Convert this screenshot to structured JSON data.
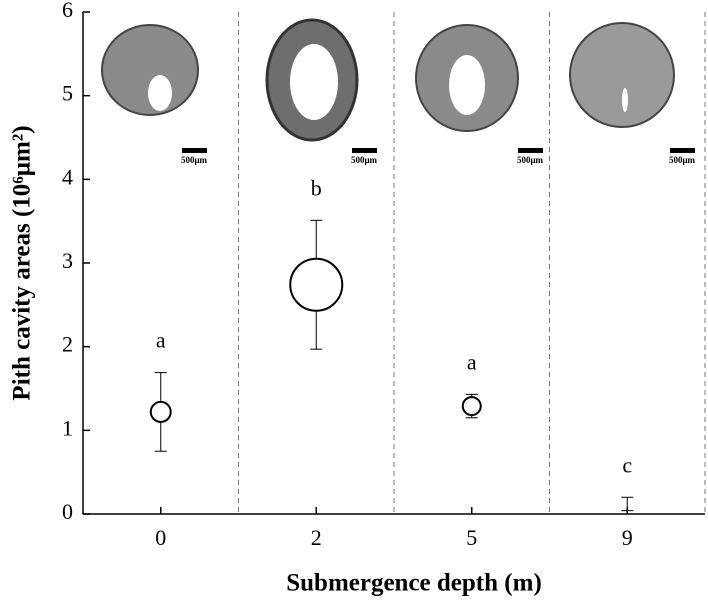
{
  "chart_data": {
    "type": "scatter",
    "xlabel": "Submergence depth (m)",
    "ylabel": "Pith cavity areas (10⁶μm²)",
    "categories": [
      "0",
      "2",
      "5",
      "9"
    ],
    "values": [
      1.22,
      2.74,
      1.29,
      0.12
    ],
    "errors": [
      0.47,
      0.77,
      0.14,
      0.08
    ],
    "sizes": [
      10,
      26,
      9,
      0
    ],
    "group_letters": [
      "a",
      "b",
      "a",
      "c"
    ],
    "scale_bar_labels": [
      "500μm",
      "500μm",
      "500μm",
      "500μm"
    ],
    "ylim": [
      0,
      6
    ],
    "yticks": [
      0,
      1,
      2,
      3,
      4,
      5,
      6
    ],
    "color": "#000000"
  }
}
